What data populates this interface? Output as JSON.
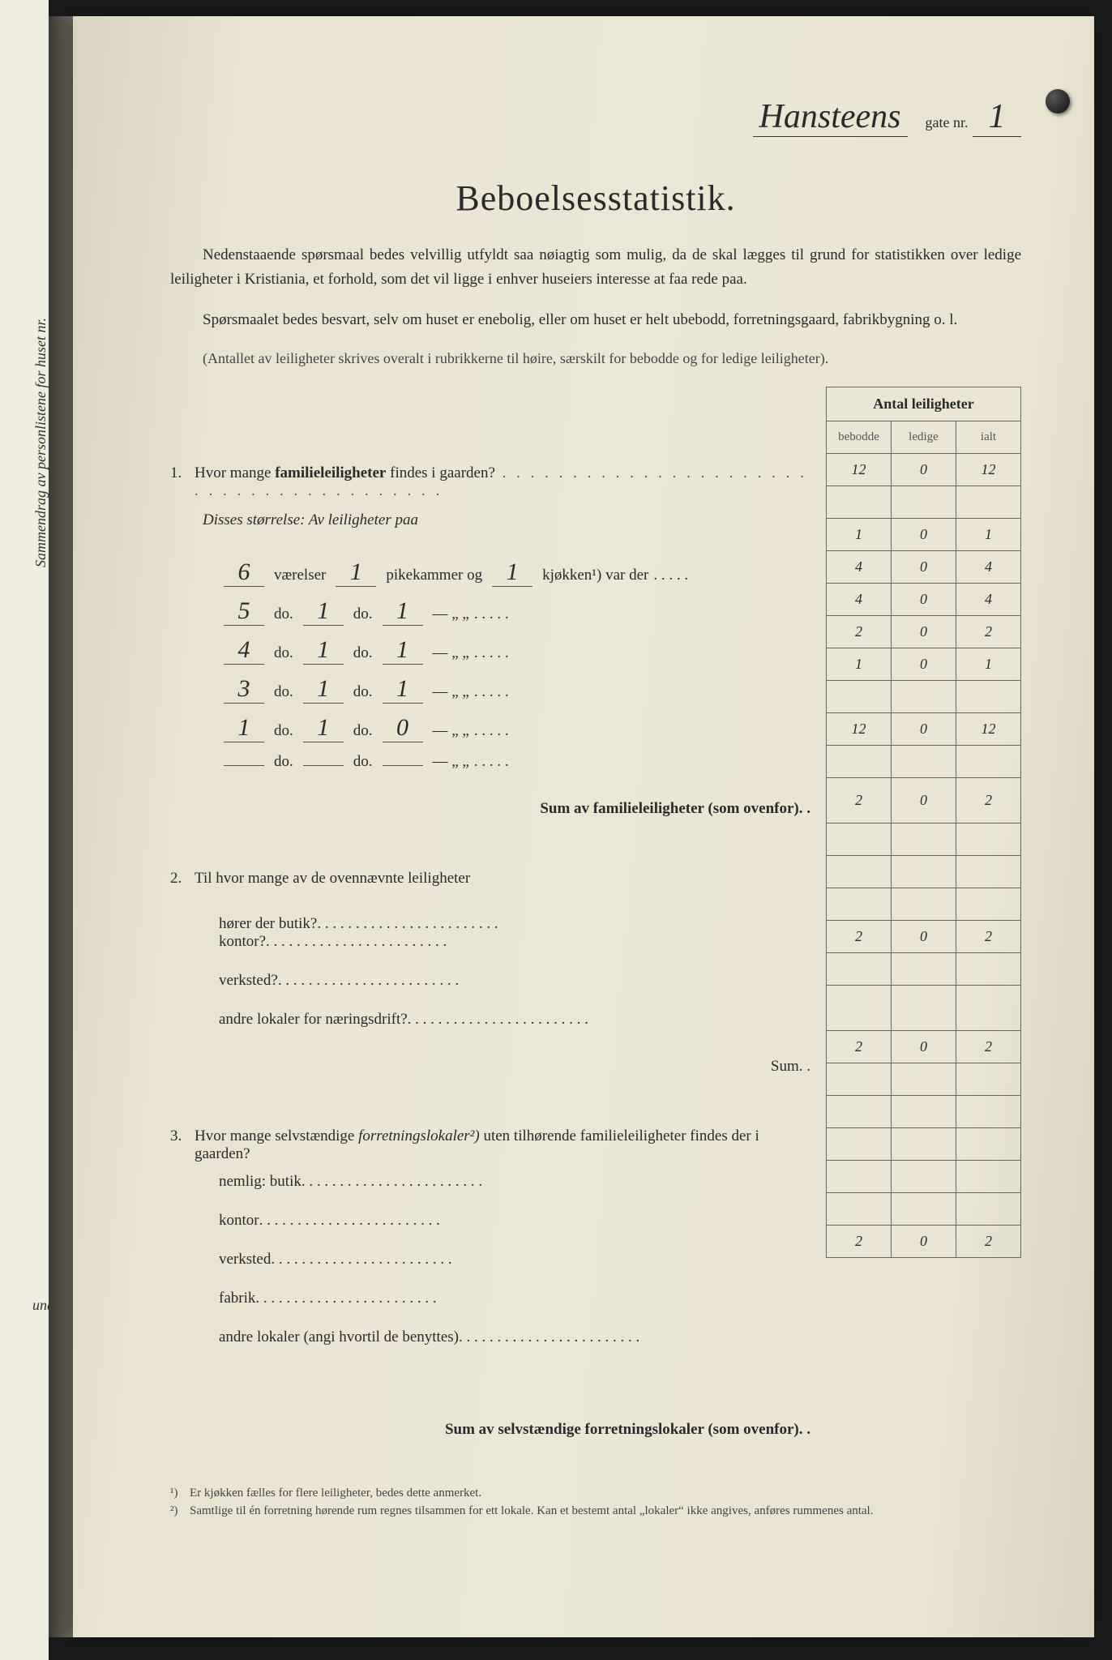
{
  "header": {
    "street_name": "Hansteens",
    "gate_label": "gate nr.",
    "gate_nr": "1"
  },
  "title": "Beboelsesstatistik.",
  "intro": [
    "Nedenstaaende spørsmaal bedes velvillig utfyldt saa nøiagtig som mulig, da de skal lægges til grund for statistikken over ledige leiligheter i Kristiania, et forhold, som det vil ligge i enhver huseiers interesse at faa rede paa.",
    "Spørsmaalet bedes besvart, selv om huset er enebolig, eller om huset er helt ubebodd, forretningsgaard, fabrikbygning o. l."
  ],
  "intro_note": "(Antallet av leiligheter skrives overalt i rubrikkerne til høire, særskilt for bebodde og for ledige leiligheter).",
  "table_header": {
    "title": "Antal leiligheter",
    "cols": [
      "bebodde",
      "ledige",
      "ialt"
    ]
  },
  "q1": {
    "text_a": "Hvor mange ",
    "text_b": "familieleiligheter",
    "text_c": " findes i gaarden?",
    "vals": [
      "12",
      "0",
      "12"
    ],
    "disses": "Disses størrelse:  Av leiligheter paa",
    "rows": [
      {
        "v": "6",
        "p": "1",
        "k": "1",
        "label_v": "værelser",
        "label_p": "pikekammer og",
        "label_k": "kjøkken¹) var der",
        "vals": [
          "1",
          "0",
          "1"
        ]
      },
      {
        "v": "5",
        "p": "1",
        "k": "1",
        "label_v": "do.",
        "label_p": "do.",
        "label_k": "—        „   „",
        "vals": [
          "4",
          "0",
          "4"
        ]
      },
      {
        "v": "4",
        "p": "1",
        "k": "1",
        "label_v": "do.",
        "label_p": "do.",
        "label_k": "—        „   „",
        "vals": [
          "4",
          "0",
          "4"
        ]
      },
      {
        "v": "3",
        "p": "1",
        "k": "1",
        "label_v": "do.",
        "label_p": "do.",
        "label_k": "—        „   „",
        "vals": [
          "2",
          "0",
          "2"
        ]
      },
      {
        "v": "1",
        "p": "1",
        "k": "0",
        "label_v": "do.",
        "label_p": "do.",
        "label_k": "—        „   „",
        "vals": [
          "1",
          "0",
          "1"
        ]
      },
      {
        "v": "",
        "p": "",
        "k": "",
        "label_v": "do.",
        "label_p": "do.",
        "label_k": "—        „   „",
        "vals": [
          "",
          "",
          ""
        ]
      }
    ],
    "sum_label": "Sum av familieleiligheter (som ovenfor). .",
    "sum_vals": [
      "12",
      "0",
      "12"
    ]
  },
  "q2": {
    "text": "Til hvor mange av de ovennævnte leiligheter",
    "rows": [
      {
        "label": "hører der butik?",
        "vals": [
          "2",
          "0",
          "2"
        ]
      },
      {
        "label": "kontor?",
        "vals": [
          "",
          "",
          ""
        ]
      },
      {
        "label": "verksted?",
        "vals": [
          "",
          "",
          ""
        ]
      },
      {
        "label": "andre lokaler for næringsdrift?",
        "vals": [
          "",
          "",
          ""
        ]
      }
    ],
    "sum_label": "Sum. .",
    "sum_vals": [
      "2",
      "0",
      "2"
    ]
  },
  "q3": {
    "text_a": "Hvor mange selvstændige ",
    "text_b": "forretningslokaler²)",
    "text_c": " uten tilhørende familieleiligheter findes der i gaarden?",
    "top_vals": [
      "",
      "",
      ""
    ],
    "rows": [
      {
        "label": "nemlig: butik",
        "vals": [
          "2",
          "0",
          "2"
        ]
      },
      {
        "label": "kontor",
        "vals": [
          "",
          "",
          ""
        ]
      },
      {
        "label": "verksted",
        "vals": [
          "",
          "",
          ""
        ]
      },
      {
        "label": "fabrik",
        "vals": [
          "",
          "",
          ""
        ]
      },
      {
        "label": "andre lokaler (angi hvortil de benyttes)",
        "vals": [
          "",
          "",
          ""
        ]
      }
    ],
    "sum_label": "Sum av selvstændige forretningslokaler (som ovenfor). .",
    "sum_vals": [
      "2",
      "0",
      "2"
    ]
  },
  "footnotes": [
    "Er kjøkken fælles for flere leiligheter, bedes dette anmerket.",
    "Samtlige til én forretning hørende rum regnes tilsammen for ett lokale. Kan et bestemt antal „lokaler“ ikke angives, anføres rummenes antal."
  ],
  "left_margin": {
    "t1": "Sammendrag av personlistene for huset nr.",
    "t2": "und bor"
  },
  "colors": {
    "paper": "#e8e4d0",
    "ink": "#2a2a2a",
    "rule": "#333333"
  },
  "typography": {
    "title_fontsize": 44,
    "body_fontsize": 19,
    "cursive_fontsize": 42,
    "hand_fontsize": 30
  }
}
